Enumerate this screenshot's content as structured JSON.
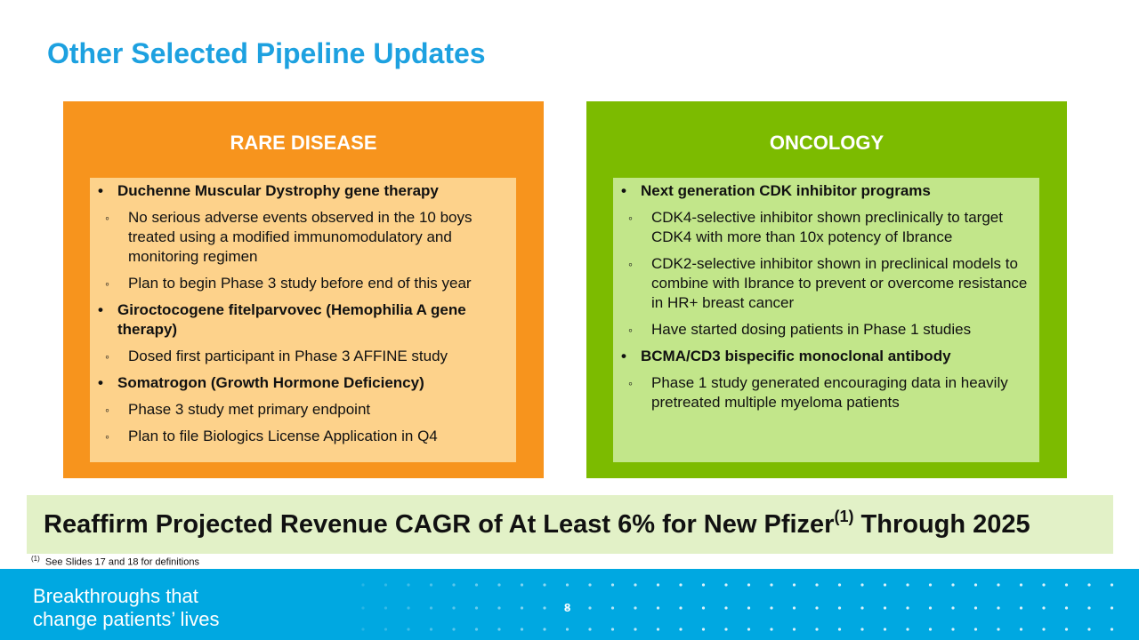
{
  "title": "Other Selected Pipeline Updates",
  "rare_disease": {
    "heading": "RARE DISEASE",
    "items": [
      {
        "level": 1,
        "text": "Duchenne Muscular Dystrophy gene therapy"
      },
      {
        "level": 2,
        "text": "No serious adverse events observed in the 10 boys treated using a modified immunomodulatory and monitoring regimen"
      },
      {
        "level": 2,
        "text": "Plan to begin Phase 3 study before end of this year"
      },
      {
        "level": 1,
        "text": "Giroctocogene fitelparvovec (Hemophilia A gene therapy)"
      },
      {
        "level": 2,
        "text": "Dosed first participant in Phase 3 AFFINE study"
      },
      {
        "level": 1,
        "text": "Somatrogon (Growth Hormone Deficiency)"
      },
      {
        "level": 2,
        "text": "Phase 3 study met primary endpoint"
      },
      {
        "level": 2,
        "text": "Plan to file Biologics License Application in Q4"
      }
    ]
  },
  "oncology": {
    "heading": "ONCOLOGY",
    "items": [
      {
        "level": 1,
        "text": "Next generation CDK inhibitor programs"
      },
      {
        "level": 2,
        "text": "CDK4-selective inhibitor shown preclinically to target CDK4 with more than 10x potency of Ibrance"
      },
      {
        "level": 2,
        "text": "CDK2-selective inhibitor shown in preclinical models to combine with Ibrance to prevent or overcome resistance in HR+ breast cancer"
      },
      {
        "level": 2,
        "text": "Have started dosing patients in Phase 1 studies"
      },
      {
        "level": 1,
        "text": "BCMA/CD3 bispecific monoclonal antibody"
      },
      {
        "level": 2,
        "text": "Phase 1 study generated encouraging data in heavily pretreated multiple myeloma patients"
      }
    ]
  },
  "banner": {
    "text_before": "Reaffirm Projected Revenue CAGR of At Least 6% for New Pfizer",
    "sup": "(1)",
    "text_after": " Through 2025"
  },
  "footnote": {
    "sup": "(1)",
    "text": "See Slides 17 and 18 for definitions"
  },
  "footer": {
    "tagline_line1": "Breakthroughs that",
    "tagline_line2": "change patients’ lives",
    "page_number": "8"
  },
  "colors": {
    "title": "#1da1e0",
    "rare_panel": "#f7941d",
    "rare_inner": "#fdd28b",
    "onc_panel": "#7cbb00",
    "onc_inner": "#c2e68a",
    "banner": "#e2f1c7",
    "footer": "#00a8e1"
  }
}
